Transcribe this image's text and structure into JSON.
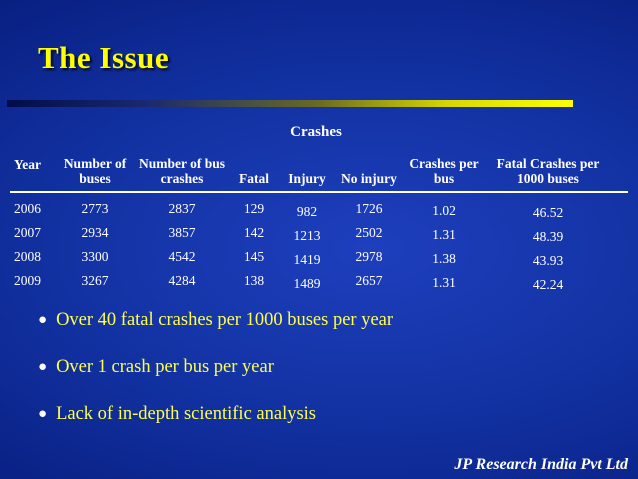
{
  "slide": {
    "title": "The Issue",
    "footer": "JP Research India Pvt Ltd"
  },
  "table": {
    "group_header": "Crashes",
    "columns": [
      "Year",
      "Number of buses",
      "Number of bus crashes",
      "Fatal",
      "Injury",
      "No injury",
      "Crashes per bus",
      "Fatal Crashes per 1000 buses"
    ],
    "rows": [
      [
        "2006",
        "2773",
        "2837",
        "129",
        "982",
        "1726",
        "1.02",
        "46.52"
      ],
      [
        "2007",
        "2934",
        "3857",
        "142",
        "1213",
        "2502",
        "1.31",
        "48.39"
      ],
      [
        "2008",
        "3300",
        "4542",
        "145",
        "1419",
        "2978",
        "1.38",
        "43.93"
      ],
      [
        "2009",
        "3267",
        "4284",
        "138",
        "1489",
        "2657",
        "1.31",
        "42.24"
      ]
    ]
  },
  "bullets": [
    "Over 40 fatal crashes per 1000 buses per year",
    "Over 1 crash per bus per year",
    "Lack of in-depth scientific analysis"
  ],
  "colors": {
    "title": "#ffff00",
    "bullet_text": "#ffff4d",
    "table_text": "#ffffff",
    "background_accent": "#1e3fbe"
  }
}
